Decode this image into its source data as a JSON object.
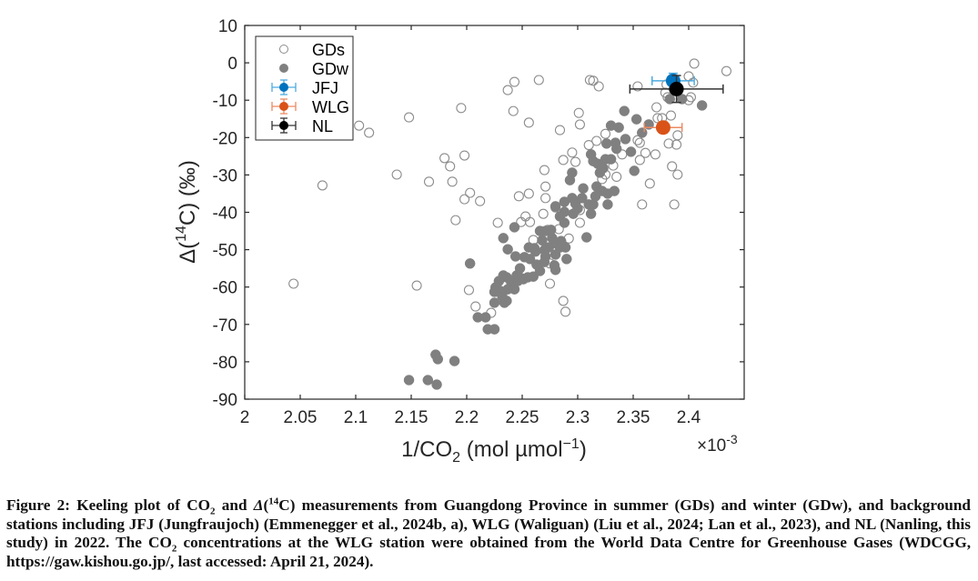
{
  "chart_data": {
    "type": "scatter",
    "title": "",
    "xlabel": "1/CO2 (mol µmol^-1)",
    "xlabel_parts": {
      "main": "1/CO",
      "sub": "2",
      "rest": " (mol µmol",
      "sup": "−1",
      "close": ")"
    },
    "x_multiplier": "×10",
    "x_multiplier_exp": "-3",
    "ylabel": "Δ(14C) (‰)",
    "ylabel_parts": {
      "pre": "Δ(",
      "sup": "14",
      "post": "C) (‰)"
    },
    "xlim": [
      2.0,
      2.45
    ],
    "ylim": [
      -90,
      10
    ],
    "xticks": [
      2.0,
      2.05,
      2.1,
      2.15,
      2.2,
      2.25,
      2.3,
      2.35,
      2.4
    ],
    "xtick_labels": [
      "2",
      "2.05",
      "2.1",
      "2.15",
      "2.2",
      "2.25",
      "2.3",
      "2.35",
      "2.4"
    ],
    "yticks": [
      10,
      0,
      -10,
      -20,
      -30,
      -40,
      -50,
      -60,
      -70,
      -80,
      -90
    ],
    "ytick_labels": [
      "10",
      "0",
      "-10",
      "-20",
      "-30",
      "-40",
      "-50",
      "-60",
      "-70",
      "-80",
      "-90"
    ],
    "grid": false,
    "legend_position": "top-left",
    "legend": [
      {
        "name": "GDs",
        "style": "open-circle",
        "color": "#8c8c8c"
      },
      {
        "name": "GDw",
        "style": "filled-circle",
        "color": "#808080"
      },
      {
        "name": "JFJ",
        "style": "errorbar",
        "color": "#0072bd",
        "bar_color": "#4dabe0"
      },
      {
        "name": "WLG",
        "style": "errorbar",
        "color": "#d95319",
        "bar_color": "#ec8a62"
      },
      {
        "name": "NL",
        "style": "errorbar",
        "color": "#000000",
        "bar_color": "#333333"
      }
    ],
    "series": [
      {
        "name": "GDs",
        "style": "open-circle",
        "color": "#8c8c8c",
        "points": [
          [
            2.044,
            -59.1
          ],
          [
            2.07,
            -32.8
          ],
          [
            2.103,
            -16.8
          ],
          [
            2.112,
            -18.7
          ],
          [
            2.148,
            -14.6
          ],
          [
            2.137,
            -29.9
          ],
          [
            2.155,
            -59.6
          ],
          [
            2.166,
            -31.8
          ],
          [
            2.18,
            -25.5
          ],
          [
            2.185,
            -27.7
          ],
          [
            2.198,
            -24.8
          ],
          [
            2.187,
            -31.8
          ],
          [
            2.195,
            -12.1
          ],
          [
            2.203,
            -34.8
          ],
          [
            2.198,
            -36.5
          ],
          [
            2.212,
            -37.0
          ],
          [
            2.19,
            -42.1
          ],
          [
            2.202,
            -60.8
          ],
          [
            2.208,
            -65.2
          ],
          [
            2.222,
            -66.9
          ],
          [
            2.228,
            -42.8
          ],
          [
            2.237,
            -7.3
          ],
          [
            2.243,
            -5.1
          ],
          [
            2.242,
            -12.9
          ],
          [
            2.256,
            -16.0
          ],
          [
            2.265,
            -4.6
          ],
          [
            2.249,
            -42.6
          ],
          [
            2.253,
            -41.1
          ],
          [
            2.247,
            -35.7
          ],
          [
            2.256,
            -35.0
          ],
          [
            2.27,
            -28.7
          ],
          [
            2.271,
            -33.1
          ],
          [
            2.271,
            -36.2
          ],
          [
            2.269,
            -40.4
          ],
          [
            2.28,
            -38.7
          ],
          [
            2.257,
            -42.6
          ],
          [
            2.26,
            -47.4
          ],
          [
            2.266,
            -49.1
          ],
          [
            2.284,
            -18.0
          ],
          [
            2.287,
            -26.0
          ],
          [
            2.298,
            -26.5
          ],
          [
            2.301,
            -13.4
          ],
          [
            2.302,
            -16.5
          ],
          [
            2.311,
            -4.6
          ],
          [
            2.275,
            -53.7
          ],
          [
            2.275,
            -59.1
          ],
          [
            2.287,
            -63.7
          ],
          [
            2.289,
            -66.6
          ],
          [
            2.302,
            -39.4
          ],
          [
            2.302,
            -42.8
          ],
          [
            2.273,
            -44.7
          ],
          [
            2.314,
            -4.8
          ],
          [
            2.319,
            -6.3
          ],
          [
            2.317,
            -20.9
          ],
          [
            2.325,
            -19.0
          ],
          [
            2.325,
            -29.9
          ],
          [
            2.332,
            -27.5
          ],
          [
            2.322,
            -31.1
          ],
          [
            2.354,
            -6.3
          ],
          [
            2.354,
            -20.7
          ],
          [
            2.356,
            -21.4
          ],
          [
            2.361,
            -24.1
          ],
          [
            2.356,
            -26.0
          ],
          [
            2.365,
            -32.3
          ],
          [
            2.358,
            -37.9
          ],
          [
            2.37,
            -24.5
          ],
          [
            2.371,
            -11.9
          ],
          [
            2.38,
            -5.8
          ],
          [
            2.379,
            -8.0
          ],
          [
            2.381,
            -9.2
          ],
          [
            2.384,
            -14.1
          ],
          [
            2.372,
            -14.8
          ],
          [
            2.376,
            -14.8
          ],
          [
            2.382,
            -21.6
          ],
          [
            2.39,
            -19.4
          ],
          [
            2.389,
            -21.9
          ],
          [
            2.385,
            -27.7
          ],
          [
            2.39,
            -29.9
          ],
          [
            2.387,
            -37.9
          ],
          [
            2.4,
            -3.6
          ],
          [
            2.404,
            -5.3
          ],
          [
            2.405,
            -0.2
          ],
          [
            2.4,
            -10.0
          ],
          [
            2.402,
            -9.2
          ],
          [
            2.434,
            -2.2
          ],
          [
            2.31,
            -22.0
          ],
          [
            2.295,
            -24.0
          ],
          [
            2.34,
            -24.5
          ],
          [
            2.335,
            -30.5
          ],
          [
            2.283,
            -44.5
          ],
          [
            2.292,
            -47.0
          ]
        ]
      },
      {
        "name": "GDw",
        "style": "filled-circle",
        "color": "#808080",
        "points": [
          [
            2.148,
            -84.9
          ],
          [
            2.165,
            -84.9
          ],
          [
            2.173,
            -86.1
          ],
          [
            2.172,
            -78.1
          ],
          [
            2.174,
            -79.3
          ],
          [
            2.189,
            -79.8
          ],
          [
            2.203,
            -53.7
          ],
          [
            2.21,
            -68.1
          ],
          [
            2.217,
            -68.1
          ],
          [
            2.219,
            -71.3
          ],
          [
            2.225,
            -71.3
          ],
          [
            2.225,
            -64.2
          ],
          [
            2.225,
            -61.3
          ],
          [
            2.226,
            -60.1
          ],
          [
            2.229,
            -58.4
          ],
          [
            2.232,
            -62.5
          ],
          [
            2.236,
            -63.7
          ],
          [
            2.233,
            -56.9
          ],
          [
            2.24,
            -58.6
          ],
          [
            2.246,
            -58.4
          ],
          [
            2.251,
            -57.9
          ],
          [
            2.255,
            -57.4
          ],
          [
            2.26,
            -57.2
          ],
          [
            2.249,
            -57.6
          ],
          [
            2.245,
            -56.9
          ],
          [
            2.236,
            -57.4
          ],
          [
            2.23,
            -61.0
          ],
          [
            2.237,
            -60.6
          ],
          [
            2.243,
            -60.6
          ],
          [
            2.234,
            -64.2
          ],
          [
            2.233,
            -46.9
          ],
          [
            2.237,
            -49.9
          ],
          [
            2.244,
            -51.8
          ],
          [
            2.243,
            -44.0
          ],
          [
            2.256,
            -49.4
          ],
          [
            2.257,
            -52.5
          ],
          [
            2.261,
            -49.6
          ],
          [
            2.263,
            -54.0
          ],
          [
            2.266,
            -55.7
          ],
          [
            2.266,
            -45.0
          ],
          [
            2.27,
            -53.3
          ],
          [
            2.271,
            -45.0
          ],
          [
            2.271,
            -51.8
          ],
          [
            2.27,
            -50.1
          ],
          [
            2.274,
            -49.4
          ],
          [
            2.276,
            -44.7
          ],
          [
            2.277,
            -46.9
          ],
          [
            2.279,
            -54.2
          ],
          [
            2.28,
            -55.4
          ],
          [
            2.28,
            -51.3
          ],
          [
            2.281,
            -48.4
          ],
          [
            2.285,
            -47.7
          ],
          [
            2.284,
            -49.4
          ],
          [
            2.289,
            -49.4
          ],
          [
            2.29,
            -52.5
          ],
          [
            2.308,
            -46.7
          ],
          [
            2.284,
            -41.1
          ],
          [
            2.288,
            -39.9
          ],
          [
            2.296,
            -40.4
          ],
          [
            2.288,
            -37.2
          ],
          [
            2.298,
            -37.7
          ],
          [
            2.31,
            -37.9
          ],
          [
            2.312,
            -40.4
          ],
          [
            2.293,
            -31.4
          ],
          [
            2.295,
            -29.4
          ],
          [
            2.305,
            -33.6
          ],
          [
            2.295,
            -36.2
          ],
          [
            2.304,
            -36.2
          ],
          [
            2.316,
            -35.7
          ],
          [
            2.317,
            -33.1
          ],
          [
            2.322,
            -34.3
          ],
          [
            2.327,
            -35.0
          ],
          [
            2.333,
            -34.3
          ],
          [
            2.314,
            -37.9
          ],
          [
            2.327,
            -37.9
          ],
          [
            2.312,
            -24.5
          ],
          [
            2.314,
            -26.3
          ],
          [
            2.325,
            -25.8
          ],
          [
            2.33,
            -25.8
          ],
          [
            2.32,
            -29.4
          ],
          [
            2.323,
            -28.2
          ],
          [
            2.326,
            -21.6
          ],
          [
            2.334,
            -21.4
          ],
          [
            2.33,
            -16.8
          ],
          [
            2.337,
            -17.3
          ],
          [
            2.342,
            -12.9
          ],
          [
            2.343,
            -20.4
          ],
          [
            2.353,
            -15.1
          ],
          [
            2.358,
            -18.7
          ],
          [
            2.364,
            -16.5
          ],
          [
            2.348,
            -23.8
          ],
          [
            2.351,
            -28.9
          ],
          [
            2.383,
            -9.7
          ],
          [
            2.394,
            -9.7
          ],
          [
            2.412,
            -11.4
          ],
          [
            2.28,
            -38.4
          ],
          [
            2.288,
            -42.8
          ],
          [
            2.262,
            -50.5
          ],
          [
            2.252,
            -52.0
          ],
          [
            2.248,
            -55.0
          ],
          [
            2.268,
            -47.5
          ],
          [
            2.3,
            -39.0
          ],
          [
            2.318,
            -27.0
          ],
          [
            2.335,
            -23.0
          ]
        ]
      },
      {
        "name": "JFJ",
        "style": "errorbar",
        "color": "#0072bd",
        "bar_color": "#4dabe0",
        "points": [
          {
            "x": 2.386,
            "y": -4.8,
            "xerr": 0.019,
            "yerr": 2.0
          }
        ]
      },
      {
        "name": "WLG",
        "style": "errorbar",
        "color": "#d95319",
        "bar_color": "#ec8a62",
        "points": [
          {
            "x": 2.377,
            "y": -17.3,
            "xerr": 0.017,
            "yerr": 1.5
          }
        ]
      },
      {
        "name": "NL",
        "style": "errorbar",
        "color": "#000000",
        "bar_color": "#333333",
        "points": [
          {
            "x": 2.389,
            "y": -7.0,
            "xerr": 0.042,
            "yerr": 3.6
          }
        ]
      }
    ]
  },
  "caption": {
    "label": "Figure 2:",
    "text_1": " Keeling plot of CO",
    "sub_1": "2",
    "text_2": " and ",
    "delta": "Δ",
    "text_3": "(",
    "sup_1": "14",
    "text_4": "C) measurements from Guangdong Province in summer (GDs) and winter (GDw), and background stations including JFJ (Jungfraujoch) (Emmenegger et al., 2024b, a), WLG (Waliguan) (Liu et al., 2024; Lan et al., 2023), and NL (Nanling, this study) in 2022. The CO",
    "sub_2": "2",
    "text_5": " concentrations at the WLG station were obtained from the World Data Centre for Greenhouse Gases (WDCGG, https://gaw.kishou.go.jp/, last accessed: April 21, 2024)."
  }
}
